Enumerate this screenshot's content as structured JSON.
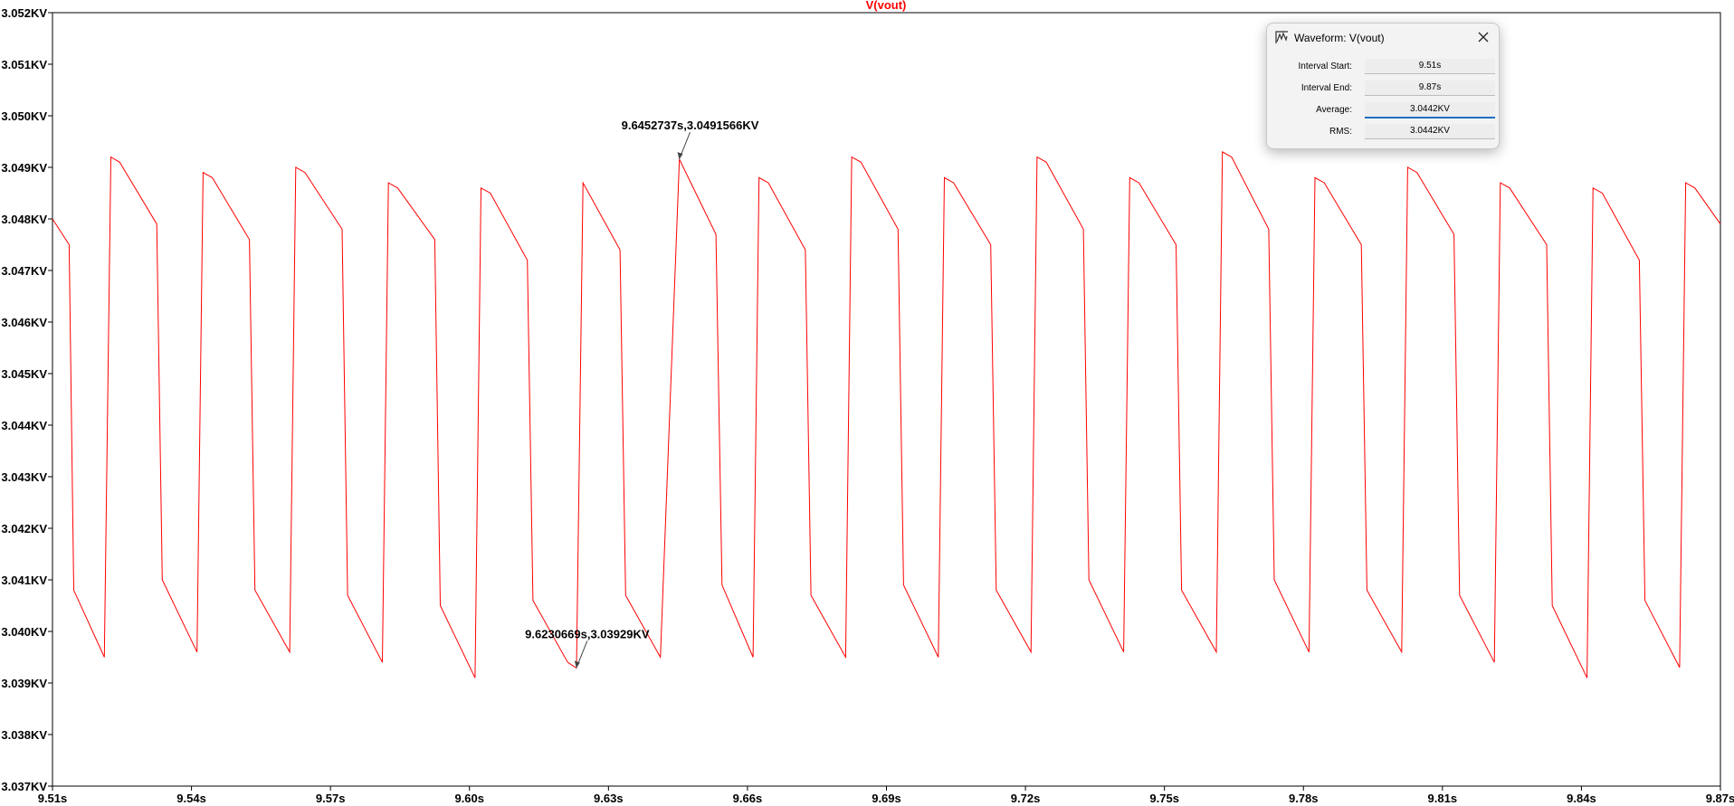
{
  "chart_data": {
    "type": "line",
    "title": "V(vout)",
    "xlabel": "",
    "ylabel": "",
    "xlim": [
      9.51,
      9.87
    ],
    "ylim": [
      3.037,
      3.052
    ],
    "x_ticks": [
      "9.51s",
      "9.54s",
      "9.57s",
      "9.60s",
      "9.63s",
      "9.66s",
      "9.69s",
      "9.72s",
      "9.75s",
      "9.78s",
      "9.81s",
      "9.84s",
      "9.87s"
    ],
    "y_ticks": [
      "3.052KV",
      "3.051KV",
      "3.050KV",
      "3.049KV",
      "3.048KV",
      "3.047KV",
      "3.046KV",
      "3.045KV",
      "3.044KV",
      "3.043KV",
      "3.042KV",
      "3.041KV",
      "3.040KV",
      "3.039KV",
      "3.038KV",
      "3.037KV"
    ],
    "grid": false,
    "color": "#ff0000",
    "series": [
      {
        "x": [
          9.51,
          9.5136,
          9.5146,
          9.5212,
          9.5226,
          9.5245,
          9.5325,
          9.5337,
          9.5412,
          9.5425,
          9.5445,
          9.5525,
          9.5537,
          9.5612,
          9.5625,
          9.5645,
          9.5725,
          9.5737,
          9.5812,
          9.5825,
          9.5845,
          9.5925,
          9.5937,
          9.6012,
          9.6025,
          9.6045,
          9.6125,
          9.6137,
          9.6212,
          9.6231,
          9.6245,
          9.6325,
          9.6337,
          9.6412,
          9.6453,
          9.6532,
          9.6545,
          9.6612,
          9.6625,
          9.6645,
          9.6725,
          9.6737,
          9.6812,
          9.6825,
          9.6845,
          9.6925,
          9.6937,
          9.7012,
          9.7025,
          9.7045,
          9.7125,
          9.7137,
          9.7212,
          9.7225,
          9.7245,
          9.7325,
          9.7337,
          9.7412,
          9.7425,
          9.7445,
          9.7525,
          9.7537,
          9.7612,
          9.7625,
          9.7645,
          9.7725,
          9.7737,
          9.7812,
          9.7825,
          9.7845,
          9.7925,
          9.7937,
          9.8012,
          9.8025,
          9.8045,
          9.8125,
          9.8137,
          9.8212,
          9.8225,
          9.8245,
          9.8325,
          9.8337,
          9.8412,
          9.8425,
          9.8445,
          9.8525,
          9.8537,
          9.8612,
          9.8625,
          9.8645,
          9.87
        ],
        "y": [
          3.048,
          3.0475,
          3.0408,
          3.0395,
          3.0492,
          3.0491,
          3.0479,
          3.041,
          3.0396,
          3.0489,
          3.0488,
          3.0476,
          3.0408,
          3.0396,
          3.049,
          3.0489,
          3.0478,
          3.0407,
          3.0394,
          3.0487,
          3.0486,
          3.0476,
          3.0405,
          3.0391,
          3.0486,
          3.0485,
          3.0472,
          3.0406,
          3.0394,
          3.03929,
          3.0487,
          3.0474,
          3.0407,
          3.0395,
          3.0491566,
          3.0477,
          3.0409,
          3.0395,
          3.0488,
          3.0487,
          3.0474,
          3.0407,
          3.0395,
          3.0492,
          3.0491,
          3.0478,
          3.0409,
          3.0395,
          3.0488,
          3.0487,
          3.0475,
          3.0408,
          3.0396,
          3.0492,
          3.0491,
          3.0478,
          3.041,
          3.0396,
          3.0488,
          3.0487,
          3.0475,
          3.0408,
          3.0396,
          3.0493,
          3.0492,
          3.0478,
          3.041,
          3.0396,
          3.0488,
          3.0487,
          3.0475,
          3.0408,
          3.0396,
          3.049,
          3.0489,
          3.0477,
          3.0407,
          3.0394,
          3.0487,
          3.0486,
          3.0475,
          3.0405,
          3.0391,
          3.0486,
          3.0485,
          3.0472,
          3.0406,
          3.0393,
          3.0487,
          3.0486,
          3.0479
        ]
      }
    ],
    "annotations": [
      {
        "text": "9.6452737s,3.0491566KV",
        "x": 9.6452737,
        "y": 3.0491566,
        "position": "above"
      },
      {
        "text": "9.6230669s,3.03929KV",
        "x": 9.6230669,
        "y": 3.03929,
        "position": "above"
      }
    ]
  },
  "dialog": {
    "title": "Waveform: V(vout)",
    "icon": "waveform-icon",
    "close_icon": "close-icon",
    "rows": [
      {
        "label": "Interval Start:",
        "value": "9.51s"
      },
      {
        "label": "Interval End:",
        "value": "9.87s"
      },
      {
        "label": "Average:",
        "value": "3.0442KV"
      },
      {
        "label": "RMS:",
        "value": "3.0442KV"
      }
    ]
  }
}
